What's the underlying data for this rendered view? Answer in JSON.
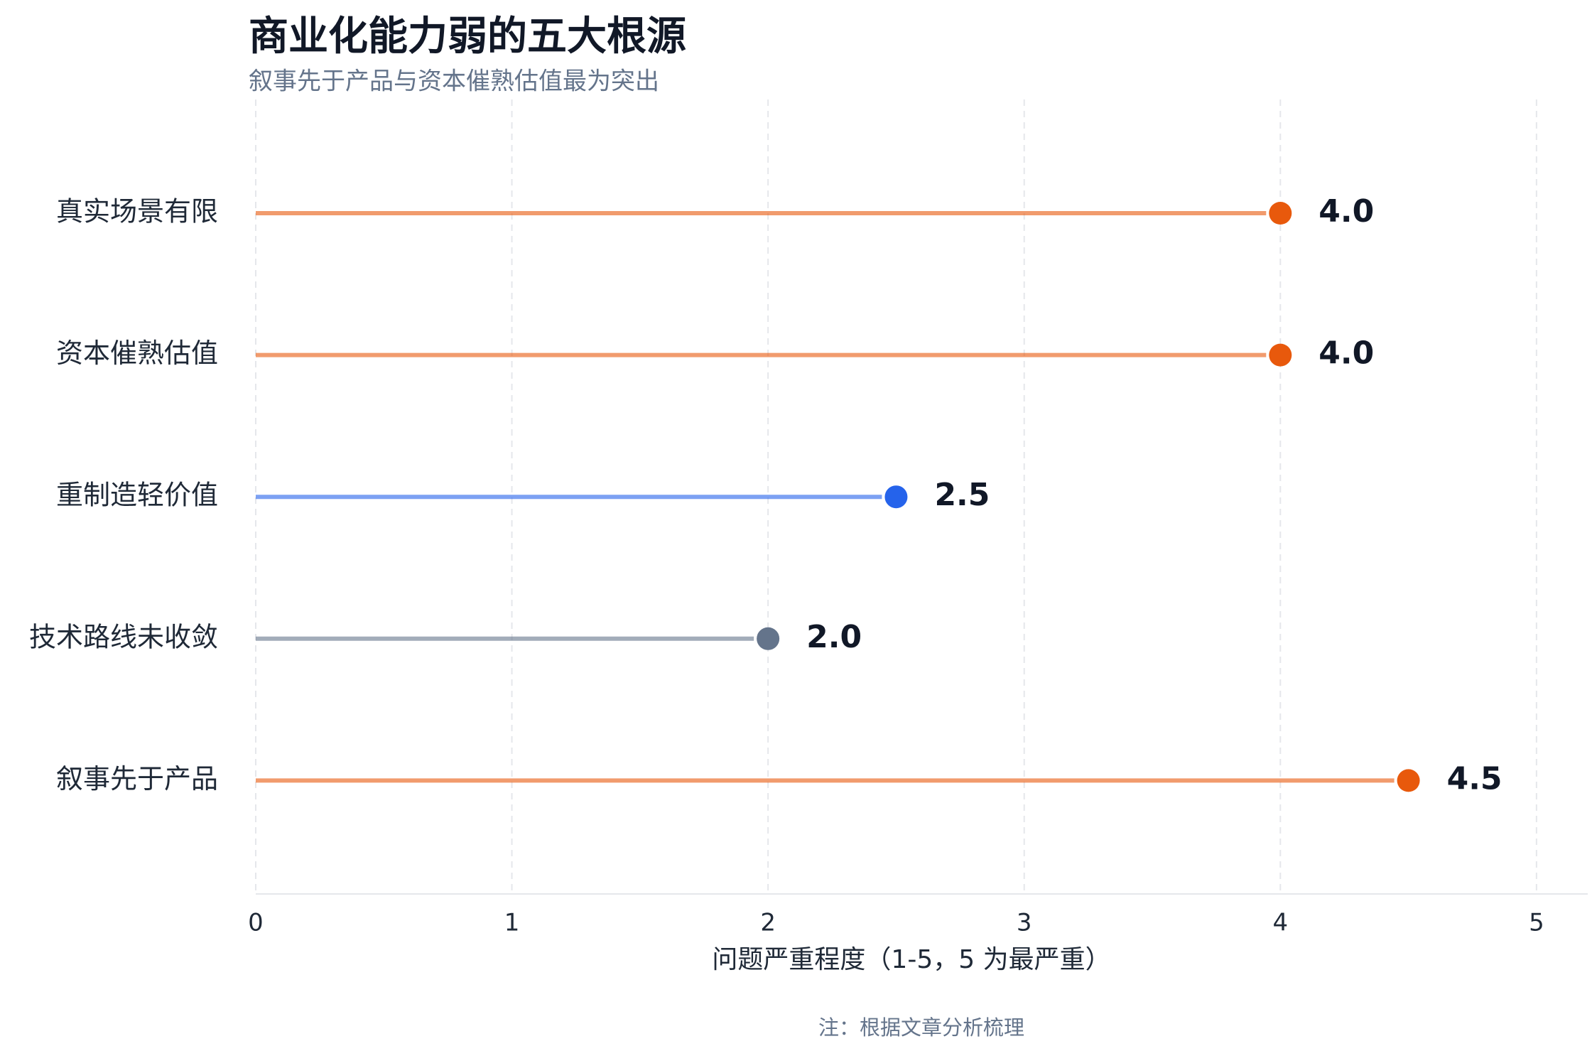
{
  "chart_data": {
    "type": "lollipop",
    "title": "商业化能力弱的五大根源",
    "subtitle": "叙事先于产品与资本催熟估值最为突出",
    "categories": [
      "真实场景有限",
      "资本催熟估值",
      "重制造轻价值",
      "技术路线未收敛",
      "叙事先于产品"
    ],
    "values": [
      4.0,
      4.0,
      2.5,
      2.0,
      4.5
    ],
    "value_labels": [
      "4.0",
      "4.0",
      "2.5",
      "2.0",
      "4.5"
    ],
    "colors": [
      "#e8590c",
      "#e8590c",
      "#2563eb",
      "#64748b",
      "#e8590c"
    ],
    "xlim": [
      0,
      5.2
    ],
    "xticks": [
      0,
      1,
      2,
      3,
      4,
      5
    ],
    "xlabel": "问题严重程度（1-5，5 为最严重）",
    "note": "注：根据文章分析梳理",
    "grid": true
  }
}
